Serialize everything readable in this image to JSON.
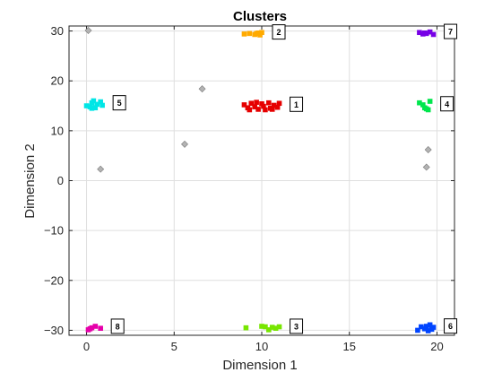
{
  "chart_data": {
    "type": "scatter",
    "title": "Clusters",
    "xlabel": "Dimension 1",
    "ylabel": "Dimension 2",
    "xlim": [
      -1,
      21
    ],
    "ylim": [
      -31,
      31
    ],
    "x_ticks": [
      0,
      5,
      10,
      15,
      20
    ],
    "y_ticks": [
      30,
      20,
      10,
      0,
      -10,
      -20,
      -30
    ],
    "grid": true,
    "series": [
      {
        "label": "1",
        "color": "#e60000",
        "points": [
          [
            9.0,
            15.2
          ],
          [
            9.2,
            14.6
          ],
          [
            9.4,
            15.5
          ],
          [
            9.6,
            14.8
          ],
          [
            9.8,
            14.3
          ],
          [
            10.0,
            15.4
          ],
          [
            10.1,
            14.9
          ],
          [
            10.2,
            14.2
          ],
          [
            10.4,
            15.6
          ],
          [
            10.5,
            14.5
          ],
          [
            10.7,
            15.1
          ],
          [
            10.9,
            14.7
          ],
          [
            11.0,
            15.5
          ],
          [
            9.3,
            14.2
          ],
          [
            10.6,
            14.3
          ],
          [
            9.7,
            15.7
          ]
        ]
      },
      {
        "label": "2",
        "color": "#ffaa00",
        "points": [
          [
            9.0,
            29.4
          ],
          [
            9.3,
            29.5
          ],
          [
            9.6,
            29.3
          ],
          [
            9.8,
            29.6
          ],
          [
            9.9,
            29.2
          ],
          [
            10.0,
            29.7
          ],
          [
            9.7,
            29.5
          ]
        ]
      },
      {
        "label": "3",
        "color": "#77e600",
        "points": [
          [
            9.1,
            -29.5
          ],
          [
            10.0,
            -29.2
          ],
          [
            10.2,
            -29.3
          ],
          [
            10.4,
            -29.9
          ],
          [
            10.8,
            -29.6
          ],
          [
            11.0,
            -29.3
          ],
          [
            10.6,
            -29.4
          ]
        ]
      },
      {
        "label": "4",
        "color": "#00e64d",
        "points": [
          [
            19.0,
            15.6
          ],
          [
            19.3,
            14.6
          ],
          [
            19.5,
            14.2
          ],
          [
            19.6,
            15.9
          ],
          [
            19.4,
            14.4
          ],
          [
            19.2,
            15.2
          ]
        ]
      },
      {
        "label": "5",
        "color": "#00e6e6",
        "points": [
          [
            0.0,
            15.0
          ],
          [
            0.2,
            14.8
          ],
          [
            0.3,
            15.6
          ],
          [
            0.4,
            16.0
          ],
          [
            0.5,
            14.6
          ],
          [
            0.6,
            15.3
          ],
          [
            0.8,
            15.8
          ],
          [
            0.9,
            15.1
          ],
          [
            0.3,
            14.5
          ]
        ]
      },
      {
        "label": "6",
        "color": "#0044ff",
        "points": [
          [
            18.9,
            -30.0
          ],
          [
            19.1,
            -29.3
          ],
          [
            19.3,
            -29.7
          ],
          [
            19.5,
            -30.1
          ],
          [
            19.6,
            -28.9
          ],
          [
            19.8,
            -29.4
          ],
          [
            19.7,
            -29.8
          ],
          [
            19.4,
            -29.2
          ]
        ]
      },
      {
        "label": "7",
        "color": "#7700e6",
        "points": [
          [
            19.0,
            29.7
          ],
          [
            19.2,
            29.4
          ],
          [
            19.4,
            29.5
          ],
          [
            19.6,
            29.8
          ],
          [
            19.8,
            29.3
          ],
          [
            19.3,
            29.6
          ]
        ]
      },
      {
        "label": "8",
        "color": "#e600aa",
        "points": [
          [
            0.1,
            -29.9
          ],
          [
            0.3,
            -29.5
          ],
          [
            0.5,
            -29.2
          ],
          [
            0.8,
            -29.6
          ],
          [
            0.2,
            -29.7
          ]
        ]
      }
    ],
    "outliers": {
      "color": "#b3b3b3",
      "points": [
        [
          0.1,
          30.1
        ],
        [
          0.8,
          2.3
        ],
        [
          5.6,
          7.3
        ],
        [
          6.6,
          18.4
        ],
        [
          19.5,
          6.2
        ],
        [
          19.4,
          2.7
        ]
      ]
    }
  }
}
